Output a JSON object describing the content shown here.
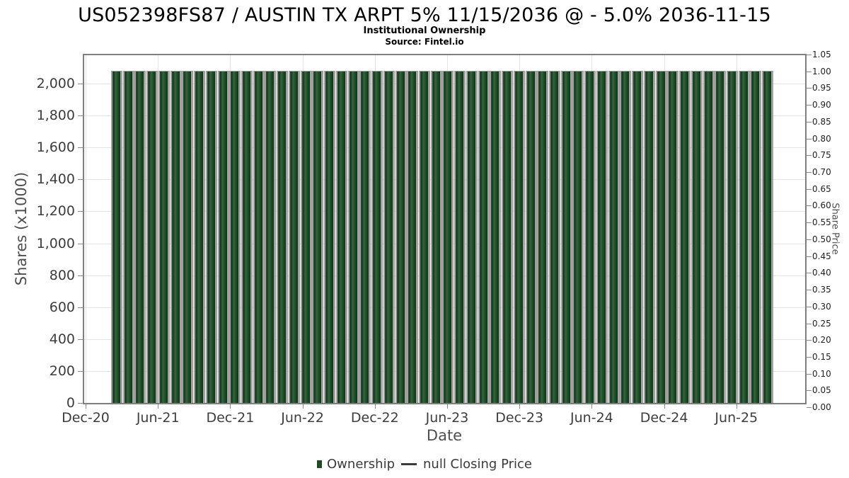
{
  "header": {
    "title": "US052398FS87 / AUSTIN TX ARPT 5% 11/15/2036 @ - 5.0% 2036-11-15",
    "subtitle": "Institutional Ownership",
    "source": "Source: Fintel.io"
  },
  "colors": {
    "bar_green": "#1e4c27",
    "bar_shadow_gray": "#a0a0a0",
    "grid": "#e4e4e4",
    "frame": "#7f7f7f",
    "legend_line": "#3a3a3a"
  },
  "chart_data": {
    "type": "bar",
    "title": "US052398FS87 / AUSTIN TX ARPT 5% 11/15/2036 @ - 5.0% 2036-11-15",
    "subtitle": "Institutional Ownership",
    "source": "Source: Fintel.io",
    "xlabel": "Date",
    "ylabel_left": "Shares (x1000)",
    "ylabel_right": "Share Price",
    "grid": true,
    "legend_position": "bottom",
    "y_left_range": [
      0,
      2180
    ],
    "y_right_range": [
      0,
      1.05
    ],
    "y_left_ticks": [
      {
        "value": 0,
        "label": "0"
      },
      {
        "value": 200,
        "label": "200"
      },
      {
        "value": 400,
        "label": "400"
      },
      {
        "value": 600,
        "label": "600"
      },
      {
        "value": 800,
        "label": "800"
      },
      {
        "value": 1000,
        "label": "1,000"
      },
      {
        "value": 1200,
        "label": "1,200"
      },
      {
        "value": 1400,
        "label": "1,400"
      },
      {
        "value": 1600,
        "label": "1,600"
      },
      {
        "value": 1800,
        "label": "1,800"
      },
      {
        "value": 2000,
        "label": "2,000"
      }
    ],
    "y_right_ticks": [
      "1.05",
      "1.00",
      "0.95",
      "0.90",
      "0.85",
      "0.80",
      "0.75",
      "0.70",
      "0.65",
      "0.60",
      "0.55",
      "0.50",
      "0.45",
      "0.40",
      "0.35",
      "0.30",
      "0.25",
      "0.20",
      "0.15",
      "0.10",
      "0.05",
      "0.00"
    ],
    "x_ticks": [
      "Dec-20",
      "Jun-21",
      "Dec-21",
      "Jun-22",
      "Dec-22",
      "Jun-23",
      "Dec-23",
      "Jun-24",
      "Dec-24",
      "Jun-25"
    ],
    "legend": [
      {
        "label": "Ownership",
        "color": "#1e4c27",
        "type": "bar"
      },
      {
        "label": "null Closing Price",
        "color": "#3a3a3a",
        "type": "line"
      }
    ],
    "series_name": "Ownership",
    "categories": [
      "Feb-21",
      "Mar-21",
      "Apr-21",
      "May-21",
      "Jun-21",
      "Jul-21",
      "Aug-21",
      "Sep-21",
      "Oct-21",
      "Nov-21",
      "Dec-21",
      "Jan-22",
      "Feb-22",
      "Mar-22",
      "Apr-22",
      "May-22",
      "Jun-22",
      "Jul-22",
      "Aug-22",
      "Sep-22",
      "Oct-22",
      "Nov-22",
      "Dec-22",
      "Jan-23",
      "Feb-23",
      "Mar-23",
      "Apr-23",
      "May-23",
      "Jun-23",
      "Jul-23",
      "Aug-23",
      "Sep-23",
      "Oct-23",
      "Nov-23",
      "Dec-23",
      "Jan-24",
      "Feb-24",
      "Mar-24",
      "Apr-24",
      "May-24",
      "Jun-24",
      "Jul-24",
      "Aug-24",
      "Sep-24",
      "Oct-24",
      "Nov-24",
      "Dec-24",
      "Jan-25",
      "Feb-25",
      "Mar-25",
      "Apr-25",
      "May-25",
      "Jun-25",
      "Jul-25",
      "Aug-25",
      "Sep-25"
    ],
    "values": [
      2080,
      2080,
      2080,
      2080,
      2080,
      2080,
      2080,
      2080,
      2080,
      2080,
      2080,
      2080,
      2080,
      2080,
      2080,
      2080,
      2080,
      2080,
      2080,
      2080,
      2080,
      2080,
      2080,
      2080,
      2080,
      2080,
      2080,
      2080,
      2080,
      2080,
      2080,
      2080,
      2080,
      2080,
      2080,
      2080,
      2080,
      2080,
      2080,
      2080,
      2080,
      2080,
      2080,
      2080,
      2080,
      2080,
      2080,
      2080,
      2080,
      2080,
      2080,
      2080,
      2080,
      2080,
      2080,
      2080
    ],
    "closing_price_series": "null"
  }
}
